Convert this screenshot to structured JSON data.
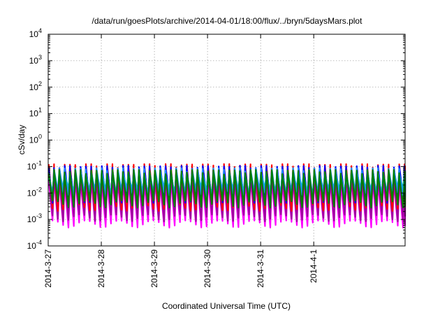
{
  "chart_data": {
    "type": "line",
    "title": "/data/run/goesPlots/archive/2014-04-01/18:00/flux/../bryn/5daysMars.plot",
    "xlabel": "Coordinated Universal Time (UTC)",
    "ylabel": "cSv/day",
    "x_range_days": [
      0,
      6.72
    ],
    "x_ticks": [
      {
        "label": "2014-3-27",
        "day": 0
      },
      {
        "label": "2014-3-28",
        "day": 1
      },
      {
        "label": "2014-3-29",
        "day": 2
      },
      {
        "label": "2014-3-30",
        "day": 3
      },
      {
        "label": "2014-3-31",
        "day": 4
      },
      {
        "label": "2014-4-1",
        "day": 5
      }
    ],
    "y_scale": "log",
    "ylim": [
      0.0001,
      10000
    ],
    "y_ticks": [
      {
        "value": 10000,
        "base": "10",
        "exp": "4"
      },
      {
        "value": 1000,
        "base": "10",
        "exp": "3"
      },
      {
        "value": 100,
        "base": "10",
        "exp": "2"
      },
      {
        "value": 10,
        "base": "10",
        "exp": "1"
      },
      {
        "value": 1,
        "base": "10",
        "exp": "0"
      },
      {
        "value": 0.1,
        "base": "10",
        "exp": "-1"
      },
      {
        "value": 0.01,
        "base": "10",
        "exp": "-2"
      },
      {
        "value": 0.001,
        "base": "10",
        "exp": "-3"
      },
      {
        "value": 0.0001,
        "base": "10",
        "exp": "-4"
      }
    ],
    "grid": true,
    "sawtooth_period_days": 0.1,
    "series": [
      {
        "color": "#ff00ff",
        "peak": 0.03,
        "trough": 0.0007
      },
      {
        "color": "#a000a0",
        "peak": 0.04,
        "trough": 0.0012
      },
      {
        "color": "#ff0000",
        "peak": 0.1,
        "trough": 0.003
      },
      {
        "color": "#0000ff",
        "peak": 0.085,
        "trough": 0.006
      },
      {
        "color": "#00c0c0",
        "peak": 0.05,
        "trough": 0.012
      },
      {
        "color": "#2090ff",
        "peak": 0.07,
        "trough": 0.009
      },
      {
        "color": "#008000",
        "peak": 0.06,
        "trough": 0.004
      }
    ]
  }
}
